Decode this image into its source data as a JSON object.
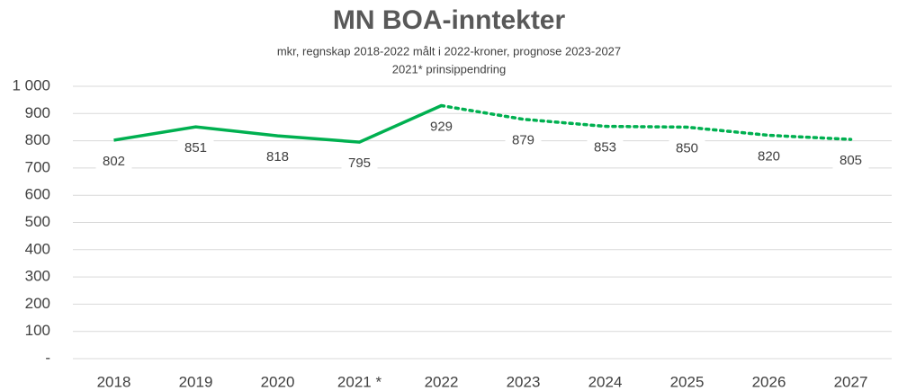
{
  "chart_data": {
    "type": "line",
    "title": "MN BOA-inntekter",
    "subtitle": [
      "mkr, regnskap 2018-2022 målt i 2022-kroner, prognose 2023-2027",
      "2021* prinsippendring"
    ],
    "categories": [
      "2018",
      "2019",
      "2020",
      "2021 *",
      "2022",
      "2023",
      "2024",
      "2025",
      "2026",
      "2027"
    ],
    "series": [
      {
        "color": "#00b050",
        "line_style": "solid",
        "values": [
          802,
          851,
          818,
          795,
          929,
          null,
          null,
          null,
          null,
          null
        ]
      },
      {
        "color": "#00b050",
        "line_style": "dotted",
        "values": [
          null,
          null,
          null,
          null,
          929,
          879,
          853,
          850,
          820,
          805
        ]
      }
    ],
    "value_label_series": [
      0,
      0,
      0,
      0,
      0,
      1,
      1,
      1,
      1,
      1
    ],
    "ylim": [
      0,
      1000
    ],
    "yticks": [
      {
        "value": 0,
        "label": "-"
      },
      100,
      200,
      300,
      400,
      500,
      600,
      700,
      800,
      900,
      {
        "value": 1000,
        "label": "1 000"
      }
    ],
    "grid": true
  }
}
